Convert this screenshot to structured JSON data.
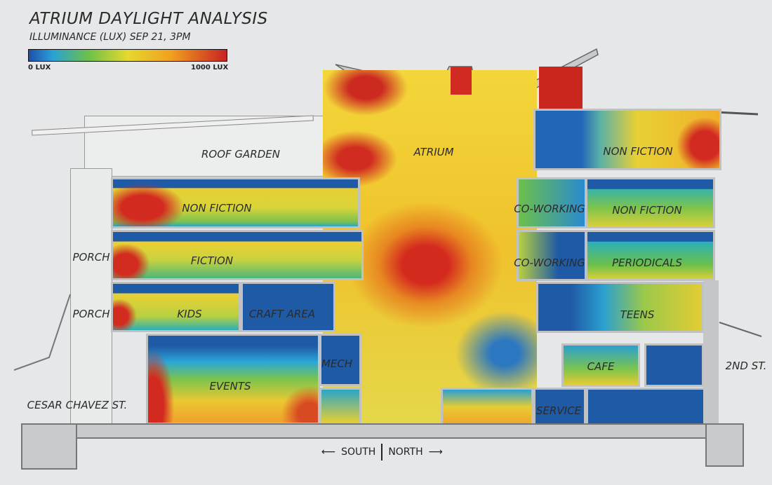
{
  "header": {
    "title": "ATRIUM DAYLIGHT ANALYSIS",
    "subtitle": "ILLUMINANCE (LUX) SEP 21, 3PM"
  },
  "legend": {
    "min_label": "0 LUX",
    "max_label": "1000 LUX",
    "colors": [
      "#1f4fa8",
      "#2aa0d8",
      "#6cc04a",
      "#e6d82e",
      "#f0a020",
      "#c82222"
    ]
  },
  "spaces": {
    "roof_garden": "ROOF GARDEN",
    "atrium": "ATRIUM",
    "nonfiction_top_right": "NON FICTION",
    "nonfiction_left": "NON FICTION",
    "coworking_1": "CO-WORKING",
    "nonfiction_right": "NON FICTION",
    "porch_1": "PORCH",
    "fiction": "FICTION",
    "coworking_2": "CO-WORKING",
    "periodicals": "PERIODICALS",
    "porch_2": "PORCH",
    "kids": "KIDS",
    "craft_area": "CRAFT AREA",
    "teens": "TEENS",
    "mech": "MECH",
    "cafe": "CAFE",
    "events": "EVENTS",
    "service": "SERVICE"
  },
  "streets": {
    "left": "CESAR CHAVEZ ST.",
    "right": "2ND ST."
  },
  "orientation": {
    "south": "SOUTH",
    "north": "NORTH",
    "left_arrow": "⟵",
    "right_arrow": "⟶"
  }
}
